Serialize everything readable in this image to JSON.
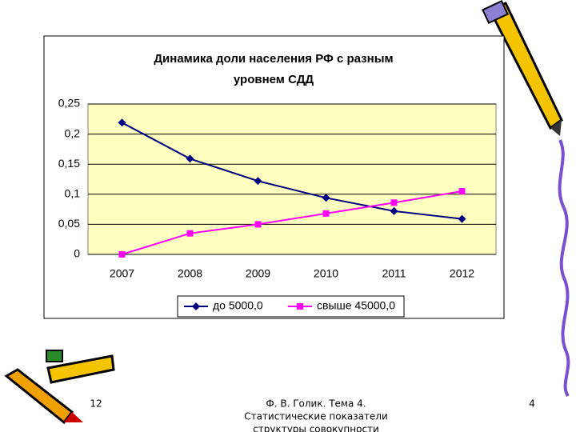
{
  "chart_data": {
    "type": "line",
    "title": [
      "Динамика доли населения РФ с разным",
      "уровнем СДД"
    ],
    "categories": [
      "2007",
      "2008",
      "2009",
      "2010",
      "2011",
      "2012"
    ],
    "series": [
      {
        "name": "до 5000,0",
        "color": "#000080",
        "marker": "diamond",
        "values": [
          0.219,
          0.159,
          0.122,
          0.094,
          0.072,
          0.059
        ]
      },
      {
        "name": "свыше 45000,0",
        "color": "#ff00ff",
        "marker": "square",
        "values": [
          0,
          0.035,
          0.05,
          0.068,
          0.086,
          0.105
        ]
      }
    ],
    "ylim": [
      0,
      0.25
    ],
    "yticks": [
      0,
      {
        "value": 0.05,
        "label": "0,05"
      },
      {
        "value": 0.1,
        "label": "0,1"
      },
      {
        "value": 0.15,
        "label": "0,15"
      },
      {
        "value": 0.2,
        "label": "0,2"
      },
      {
        "value": 0.25,
        "label": "0,25"
      }
    ],
    "grid": true,
    "plot_background": "#ffffc0",
    "legend": "bottom"
  },
  "footer": {
    "page_left": "12",
    "author": [
      "Ф. В. Голик. Тема 4.",
      "Статистические показатели",
      "структуры совокупности"
    ],
    "page_right": "4"
  }
}
